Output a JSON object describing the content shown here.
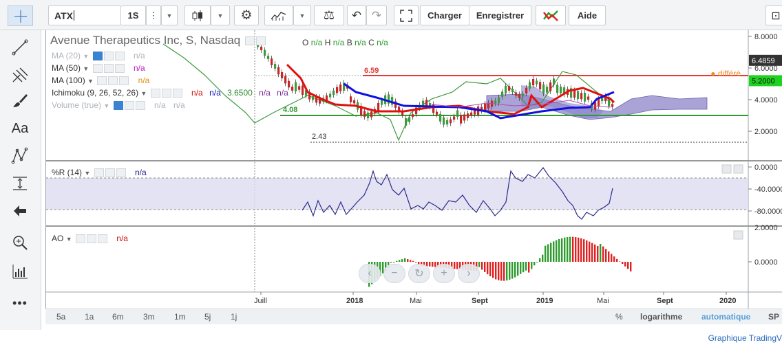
{
  "toolbar": {
    "symbol_value": "ATX",
    "interval": "1S",
    "load_label": "Charger",
    "save_label": "Enregistrer",
    "help_label": "Aide"
  },
  "header": {
    "title": "Avenue Therapeutics Inc, S, Nasdaq",
    "ohlc": [
      {
        "key": "O",
        "value": "n/a"
      },
      {
        "key": "H",
        "value": "n/a"
      },
      {
        "key": "B",
        "value": "n/a"
      },
      {
        "key": "C",
        "value": "n/a"
      }
    ],
    "delayed": "différé"
  },
  "indicators": {
    "ma20": {
      "label": "MA (20)",
      "value": "n/a"
    },
    "ma50": {
      "label": "MA (50)",
      "value": "n/a"
    },
    "ma100": {
      "label": "MA (100)",
      "value": "n/a"
    },
    "ichimoku": {
      "label": "Ichimoku (9, 26, 52, 26)",
      "v1": "n/a",
      "v2": "n/a",
      "v3": "3.6500",
      "v4": "n/a",
      "v5": "n/a"
    },
    "volume": {
      "label": "Volume (true)",
      "v1": "n/a",
      "v2": "n/a"
    },
    "wr": {
      "label": "%R (14)",
      "value": "n/a"
    },
    "ao": {
      "label": "AO",
      "value": "n/a"
    }
  },
  "price_axis": {
    "ticks": [
      "8.0000",
      "6.0000",
      "4.0000",
      "2.0000"
    ],
    "last_red": "6.4859",
    "last_green": "5.2000"
  },
  "annotations": {
    "high": "6.59",
    "mid": "4.08",
    "low": "2.43"
  },
  "wr_axis": {
    "ticks": [
      "0.0000",
      "-40.0000",
      "-80.0000"
    ]
  },
  "ao_axis": {
    "ticks": [
      "2.0000",
      "0.0000"
    ]
  },
  "time_axis": [
    "Juill",
    "2018",
    "Mai",
    "Sept",
    "2019",
    "Mai",
    "Sept",
    "2020"
  ],
  "ranges": [
    "5a",
    "1a",
    "6m",
    "3m",
    "1m",
    "5j",
    "1j"
  ],
  "scale_options": {
    "percent": "%",
    "log": "logarithme",
    "auto": "automatique",
    "sp": "SP"
  },
  "footer": "Graphique TradingV",
  "colors": {
    "price_line": "#3c9b3c",
    "kijun": "#e01010",
    "tenkan_blue": "#1010e0",
    "level_red": "#e53935",
    "level_green": "#2e9b2e",
    "cloud": "#8c84c8",
    "wr_line": "#2b2b8a",
    "ao_up": "#2e9b2e",
    "ao_down": "#e02020",
    "accent": "#3a82d2"
  },
  "icons": [
    "crosshair-icon",
    "line-icon",
    "fork-icon",
    "brush-icon",
    "text-icon",
    "pattern-icon",
    "measure-icon",
    "back-arrow-icon",
    "zoom-icon",
    "bars-icon",
    "more-icon",
    "gear-icon",
    "candles-icon",
    "indicators-icon",
    "compare-icon",
    "undo-icon",
    "redo-icon",
    "fullscreen-icon",
    "camera-icon"
  ]
}
